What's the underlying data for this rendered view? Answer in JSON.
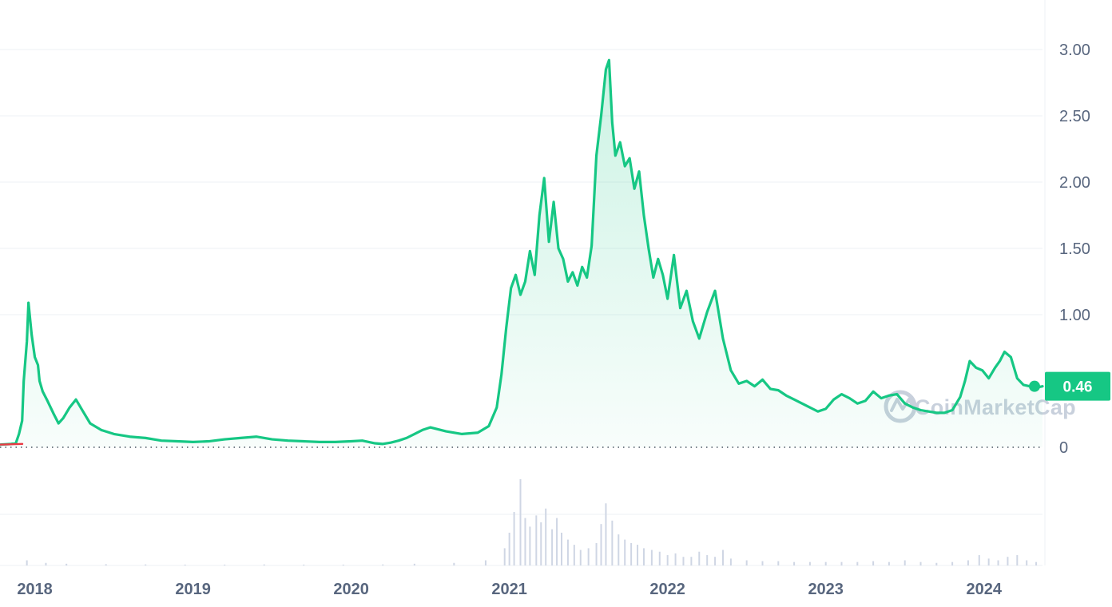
{
  "colors": {
    "line": "#16c784",
    "fill_top": "#16c784",
    "negative_segment": "#ea3943",
    "grid": "#eef1f5",
    "axis_text": "#58667e",
    "volume": "#cfd6e4",
    "watermark": "#c8d0dc"
  },
  "watermark": {
    "text": "CoinMarketCap"
  },
  "chart_data": {
    "type": "line",
    "title": "",
    "xlabel": "",
    "ylabel": "",
    "x_tick_labels": [
      "2018",
      "2019",
      "2020",
      "2021",
      "2022",
      "2023",
      "2024"
    ],
    "y_tick_labels": [
      "0",
      "1.00",
      "1.50",
      "2.00",
      "2.50",
      "3.00"
    ],
    "y_ticks": [
      0,
      1.0,
      1.5,
      2.0,
      2.5,
      3.0
    ],
    "ylim": [
      0,
      3.0
    ],
    "xlim": [
      2017.83,
      2024.42
    ],
    "current_price_label": "0.46",
    "current_price": 0.46,
    "series": [
      {
        "type": "line",
        "x": [
          2017.83,
          2017.9,
          2017.93,
          2017.95,
          2017.97,
          2017.98,
          2018.0,
          2018.01,
          2018.03,
          2018.05,
          2018.07,
          2018.08,
          2018.1,
          2018.13,
          2018.17,
          2018.2,
          2018.23,
          2018.27,
          2018.31,
          2018.35,
          2018.4,
          2018.47,
          2018.55,
          2018.65,
          2018.75,
          2018.85,
          2018.95,
          2019.05,
          2019.15,
          2019.25,
          2019.35,
          2019.45,
          2019.55,
          2019.65,
          2019.75,
          2019.85,
          2019.95,
          2020.05,
          2020.12,
          2020.2,
          2020.25,
          2020.3,
          2020.35,
          2020.4,
          2020.45,
          2020.5,
          2020.55,
          2020.65,
          2020.75,
          2020.85,
          2020.92,
          2020.97,
          2021.0,
          2021.03,
          2021.06,
          2021.09,
          2021.12,
          2021.15,
          2021.18,
          2021.21,
          2021.24,
          2021.27,
          2021.3,
          2021.33,
          2021.36,
          2021.39,
          2021.42,
          2021.45,
          2021.48,
          2021.51,
          2021.54,
          2021.57,
          2021.6,
          2021.63,
          2021.66,
          2021.68,
          2021.7,
          2021.72,
          2021.75,
          2021.78,
          2021.81,
          2021.84,
          2021.87,
          2021.9,
          2021.93,
          2021.96,
          2021.99,
          2022.02,
          2022.05,
          2022.09,
          2022.13,
          2022.17,
          2022.21,
          2022.25,
          2022.3,
          2022.35,
          2022.4,
          2022.45,
          2022.5,
          2022.55,
          2022.6,
          2022.65,
          2022.7,
          2022.75,
          2022.8,
          2022.85,
          2022.9,
          2022.95,
          2023.0,
          2023.05,
          2023.1,
          2023.15,
          2023.2,
          2023.25,
          2023.3,
          2023.35,
          2023.4,
          2023.45,
          2023.5,
          2023.55,
          2023.6,
          2023.65,
          2023.7,
          2023.75,
          2023.8,
          2023.85,
          2023.9,
          2023.93,
          2023.96,
          2024.0,
          2024.04,
          2024.08,
          2024.12,
          2024.15,
          2024.18,
          2024.22,
          2024.26,
          2024.3,
          2024.34,
          2024.38,
          2024.42
        ],
        "values": [
          0.02,
          0.025,
          0.03,
          0.1,
          0.2,
          0.5,
          0.8,
          1.09,
          0.85,
          0.68,
          0.62,
          0.5,
          0.42,
          0.35,
          0.25,
          0.18,
          0.22,
          0.3,
          0.36,
          0.28,
          0.18,
          0.13,
          0.1,
          0.08,
          0.07,
          0.05,
          0.045,
          0.04,
          0.045,
          0.06,
          0.07,
          0.08,
          0.06,
          0.05,
          0.045,
          0.04,
          0.04,
          0.045,
          0.05,
          0.03,
          0.025,
          0.035,
          0.05,
          0.07,
          0.1,
          0.13,
          0.15,
          0.12,
          0.1,
          0.11,
          0.16,
          0.3,
          0.55,
          0.9,
          1.2,
          1.3,
          1.15,
          1.25,
          1.48,
          1.3,
          1.75,
          2.03,
          1.55,
          1.85,
          1.5,
          1.42,
          1.25,
          1.32,
          1.22,
          1.36,
          1.28,
          1.52,
          2.2,
          2.5,
          2.85,
          2.92,
          2.45,
          2.2,
          2.3,
          2.12,
          2.18,
          1.95,
          2.08,
          1.75,
          1.5,
          1.28,
          1.42,
          1.3,
          1.12,
          1.45,
          1.05,
          1.18,
          0.95,
          0.82,
          1.02,
          1.18,
          0.82,
          0.58,
          0.48,
          0.5,
          0.46,
          0.51,
          0.44,
          0.43,
          0.39,
          0.36,
          0.33,
          0.3,
          0.27,
          0.29,
          0.36,
          0.4,
          0.37,
          0.33,
          0.35,
          0.42,
          0.37,
          0.39,
          0.4,
          0.33,
          0.3,
          0.28,
          0.27,
          0.26,
          0.26,
          0.28,
          0.38,
          0.5,
          0.65,
          0.6,
          0.58,
          0.52,
          0.6,
          0.65,
          0.72,
          0.68,
          0.52,
          0.47,
          0.46,
          0.45,
          0.46
        ]
      }
    ],
    "volume": {
      "type": "bar",
      "x": [
        2018.0,
        2018.12,
        2018.25,
        2018.5,
        2018.75,
        2019.0,
        2019.25,
        2019.5,
        2019.75,
        2020.0,
        2020.25,
        2020.45,
        2020.7,
        2020.9,
        2021.02,
        2021.05,
        2021.08,
        2021.12,
        2021.15,
        2021.18,
        2021.22,
        2021.25,
        2021.28,
        2021.32,
        2021.35,
        2021.38,
        2021.42,
        2021.46,
        2021.5,
        2021.55,
        2021.6,
        2021.63,
        2021.66,
        2021.7,
        2021.74,
        2021.78,
        2021.82,
        2021.86,
        2021.9,
        2021.95,
        2022.0,
        2022.05,
        2022.1,
        2022.15,
        2022.2,
        2022.25,
        2022.3,
        2022.35,
        2022.4,
        2022.45,
        2022.55,
        2022.65,
        2022.75,
        2022.85,
        2022.95,
        2023.05,
        2023.15,
        2023.25,
        2023.35,
        2023.45,
        2023.55,
        2023.65,
        2023.75,
        2023.85,
        2023.95,
        2024.02,
        2024.08,
        2024.14,
        2024.2,
        2024.26,
        2024.32,
        2024.38
      ],
      "values": [
        0.06,
        0.03,
        0.02,
        0.015,
        0.012,
        0.01,
        0.01,
        0.012,
        0.01,
        0.01,
        0.012,
        0.02,
        0.03,
        0.06,
        0.2,
        0.38,
        0.62,
        1.0,
        0.55,
        0.45,
        0.58,
        0.5,
        0.66,
        0.42,
        0.55,
        0.38,
        0.3,
        0.24,
        0.18,
        0.2,
        0.26,
        0.48,
        0.72,
        0.52,
        0.36,
        0.3,
        0.26,
        0.24,
        0.2,
        0.18,
        0.16,
        0.12,
        0.14,
        0.1,
        0.1,
        0.16,
        0.12,
        0.1,
        0.18,
        0.08,
        0.06,
        0.05,
        0.05,
        0.04,
        0.04,
        0.04,
        0.04,
        0.04,
        0.05,
        0.04,
        0.06,
        0.04,
        0.03,
        0.04,
        0.06,
        0.12,
        0.08,
        0.06,
        0.1,
        0.12,
        0.06,
        0.04
      ]
    },
    "grid": true,
    "legend": "none"
  }
}
